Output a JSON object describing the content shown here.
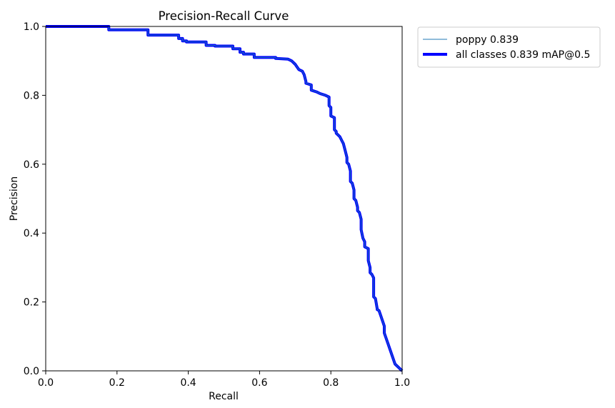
{
  "chart_data": {
    "type": "line",
    "title": "Precision-Recall Curve",
    "xlabel": "Recall",
    "ylabel": "Precision",
    "xlim": [
      0,
      1
    ],
    "ylim": [
      0,
      1
    ],
    "xticks": [
      "0.0",
      "0.2",
      "0.4",
      "0.6",
      "0.8",
      "1.0"
    ],
    "yticks": [
      "0.0",
      "0.2",
      "0.4",
      "0.6",
      "0.8",
      "1.0"
    ],
    "grid": false,
    "legend_position": "outside-upper-right",
    "series": [
      {
        "name": "poppy 0.839",
        "color": "#1f77b4",
        "line_style": "thin",
        "x": [
          0.0,
          0.177,
          0.177,
          0.287,
          0.287,
          0.373,
          0.373,
          0.384,
          0.384,
          0.395,
          0.395,
          0.45,
          0.45,
          0.475,
          0.475,
          0.525,
          0.525,
          0.545,
          0.545,
          0.555,
          0.555,
          0.585,
          0.585,
          0.645,
          0.645,
          0.68,
          0.69,
          0.7,
          0.71,
          0.72,
          0.725,
          0.73,
          0.73,
          0.745,
          0.745,
          0.76,
          0.77,
          0.785,
          0.795,
          0.795,
          0.8,
          0.8,
          0.81,
          0.81,
          0.815,
          0.815,
          0.82,
          0.825,
          0.83,
          0.835,
          0.84,
          0.845,
          0.845,
          0.85,
          0.855,
          0.855,
          0.86,
          0.865,
          0.865,
          0.87,
          0.875,
          0.875,
          0.88,
          0.885,
          0.885,
          0.89,
          0.895,
          0.895,
          0.905,
          0.905,
          0.91,
          0.91,
          0.915,
          0.92,
          0.92,
          0.925,
          0.93,
          0.93,
          0.935,
          0.935,
          0.94,
          0.95,
          0.95,
          0.96,
          0.97,
          0.98,
          0.99,
          1.0
        ],
        "y": [
          1.0,
          1.0,
          0.99,
          0.99,
          0.975,
          0.975,
          0.965,
          0.965,
          0.958,
          0.958,
          0.955,
          0.955,
          0.945,
          0.945,
          0.943,
          0.943,
          0.935,
          0.935,
          0.925,
          0.925,
          0.92,
          0.92,
          0.91,
          0.91,
          0.907,
          0.905,
          0.9,
          0.89,
          0.875,
          0.87,
          0.86,
          0.84,
          0.835,
          0.83,
          0.815,
          0.81,
          0.805,
          0.8,
          0.795,
          0.77,
          0.765,
          0.74,
          0.735,
          0.7,
          0.695,
          0.69,
          0.685,
          0.68,
          0.67,
          0.66,
          0.64,
          0.62,
          0.605,
          0.6,
          0.58,
          0.55,
          0.545,
          0.525,
          0.5,
          0.495,
          0.475,
          0.465,
          0.46,
          0.44,
          0.41,
          0.385,
          0.375,
          0.36,
          0.355,
          0.32,
          0.3,
          0.285,
          0.28,
          0.27,
          0.215,
          0.21,
          0.18,
          0.178,
          0.175,
          0.175,
          0.16,
          0.13,
          0.11,
          0.08,
          0.05,
          0.02,
          0.01,
          0.0
        ]
      },
      {
        "name": "all classes 0.839 mAP@0.5",
        "color": "#0000ff",
        "line_style": "thick",
        "x": [
          0.0,
          0.177,
          0.177,
          0.287,
          0.287,
          0.373,
          0.373,
          0.384,
          0.384,
          0.395,
          0.395,
          0.45,
          0.45,
          0.475,
          0.475,
          0.525,
          0.525,
          0.545,
          0.545,
          0.555,
          0.555,
          0.585,
          0.585,
          0.645,
          0.645,
          0.68,
          0.69,
          0.7,
          0.71,
          0.72,
          0.725,
          0.73,
          0.73,
          0.745,
          0.745,
          0.76,
          0.77,
          0.785,
          0.795,
          0.795,
          0.8,
          0.8,
          0.81,
          0.81,
          0.815,
          0.815,
          0.82,
          0.825,
          0.83,
          0.835,
          0.84,
          0.845,
          0.845,
          0.85,
          0.855,
          0.855,
          0.86,
          0.865,
          0.865,
          0.87,
          0.875,
          0.875,
          0.88,
          0.885,
          0.885,
          0.89,
          0.895,
          0.895,
          0.905,
          0.905,
          0.91,
          0.91,
          0.915,
          0.92,
          0.92,
          0.925,
          0.93,
          0.93,
          0.935,
          0.935,
          0.94,
          0.95,
          0.95,
          0.96,
          0.97,
          0.98,
          0.99,
          1.0
        ],
        "y": [
          1.0,
          1.0,
          0.99,
          0.99,
          0.975,
          0.975,
          0.965,
          0.965,
          0.958,
          0.958,
          0.955,
          0.955,
          0.945,
          0.945,
          0.943,
          0.943,
          0.935,
          0.935,
          0.925,
          0.925,
          0.92,
          0.92,
          0.91,
          0.91,
          0.907,
          0.905,
          0.9,
          0.89,
          0.875,
          0.87,
          0.86,
          0.84,
          0.835,
          0.83,
          0.815,
          0.81,
          0.805,
          0.8,
          0.795,
          0.77,
          0.765,
          0.74,
          0.735,
          0.7,
          0.695,
          0.69,
          0.685,
          0.68,
          0.67,
          0.66,
          0.64,
          0.62,
          0.605,
          0.6,
          0.58,
          0.55,
          0.545,
          0.525,
          0.5,
          0.495,
          0.475,
          0.465,
          0.46,
          0.44,
          0.41,
          0.385,
          0.375,
          0.36,
          0.355,
          0.32,
          0.3,
          0.285,
          0.28,
          0.27,
          0.215,
          0.21,
          0.18,
          0.178,
          0.175,
          0.175,
          0.16,
          0.13,
          0.11,
          0.08,
          0.05,
          0.02,
          0.01,
          0.0
        ]
      }
    ]
  }
}
